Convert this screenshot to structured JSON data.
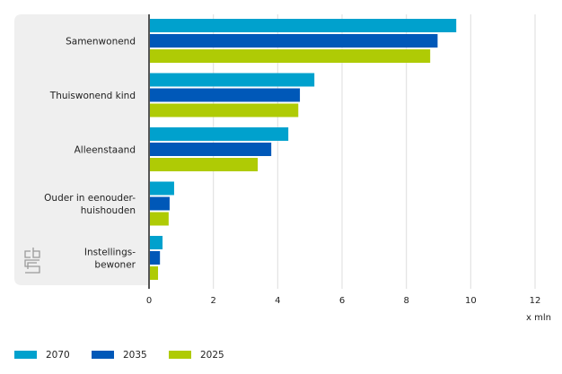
{
  "chart_data": {
    "type": "bar",
    "orientation": "horizontal",
    "title": "",
    "xlabel": "x mln",
    "ylabel": "",
    "xlim": [
      0,
      12
    ],
    "xticks": [
      0,
      2,
      4,
      6,
      8,
      10,
      12
    ],
    "grid": true,
    "categories": [
      [
        "Samenwonend"
      ],
      [
        "Thuiswonend kind"
      ],
      [
        "Alleenstaand"
      ],
      [
        "Ouder in eenouder-",
        "huishouden"
      ],
      [
        "Instellings-",
        "bewoner"
      ]
    ],
    "series": [
      {
        "name": "2070",
        "color": "#00A1CD",
        "values": [
          9.55,
          5.14,
          4.33,
          0.78,
          0.42
        ]
      },
      {
        "name": "2035",
        "color": "#0058B8",
        "values": [
          8.97,
          4.69,
          3.8,
          0.64,
          0.34
        ]
      },
      {
        "name": "2025",
        "color": "#AFCB05",
        "values": [
          8.74,
          4.64,
          3.38,
          0.61,
          0.28
        ]
      }
    ],
    "legend": {
      "placement": "bottom-left"
    }
  },
  "logo": {
    "icon": "cbs-logo-icon"
  },
  "colors": {
    "panel": "#EFEFEF",
    "grid": "#E3E3E3",
    "axis": "#555555"
  }
}
